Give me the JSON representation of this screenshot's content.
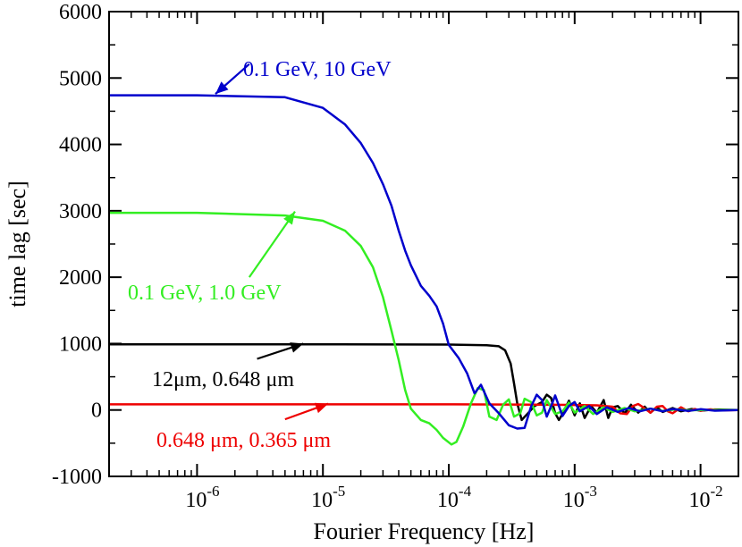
{
  "chart_data": {
    "type": "line",
    "xlabel": "Fourier Frequency [Hz]",
    "ylabel": "time lag [sec]",
    "xscale": "log",
    "xlim": [
      2e-07,
      0.02
    ],
    "ylim": [
      -1000,
      6000
    ],
    "grid": false,
    "y_ticks": [
      "6000",
      "5000",
      "4000",
      "3000",
      "2000",
      "1000",
      "0",
      "-1000"
    ],
    "y_tick_values": [
      6000,
      5000,
      4000,
      3000,
      2000,
      1000,
      0,
      -1000
    ],
    "x_tick_labels": [
      {
        "base": "10",
        "exp": "-6",
        "value": 1e-06
      },
      {
        "base": "10",
        "exp": "-5",
        "value": 1e-05
      },
      {
        "base": "10",
        "exp": "-4",
        "value": 0.0001
      },
      {
        "base": "10",
        "exp": "-3",
        "value": 0.001
      },
      {
        "base": "10",
        "exp": "-2",
        "value": 0.01
      }
    ],
    "series": [
      {
        "name": "0.1 GeV, 10 GeV",
        "color": "#0000cc",
        "points": [
          [
            2e-07,
            4740
          ],
          [
            1e-06,
            4740
          ],
          [
            5e-06,
            4710
          ],
          [
            1e-05,
            4550
          ],
          [
            1.5e-05,
            4300
          ],
          [
            2e-05,
            4020
          ],
          [
            2.5e-05,
            3720
          ],
          [
            3e-05,
            3400
          ],
          [
            3.5e-05,
            3080
          ],
          [
            4e-05,
            2700
          ],
          [
            4.5e-05,
            2400
          ],
          [
            5e-05,
            2180
          ],
          [
            6e-05,
            1870
          ],
          [
            7e-05,
            1720
          ],
          [
            8e-05,
            1560
          ],
          [
            9e-05,
            1300
          ],
          [
            0.0001,
            980
          ],
          [
            0.00012,
            780
          ],
          [
            0.00014,
            550
          ],
          [
            0.00016,
            250
          ],
          [
            0.00018,
            380
          ],
          [
            0.00021,
            100
          ],
          [
            0.00025,
            -50
          ],
          [
            0.0003,
            -230
          ],
          [
            0.00035,
            -280
          ],
          [
            0.0004,
            -270
          ],
          [
            0.00045,
            50
          ],
          [
            0.0005,
            230
          ],
          [
            0.00055,
            150
          ],
          [
            0.0006,
            -100
          ],
          [
            0.00065,
            60
          ],
          [
            0.0007,
            220
          ],
          [
            0.0008,
            -90
          ],
          [
            0.0009,
            60
          ],
          [
            0.001,
            120
          ],
          [
            0.0011,
            -20
          ],
          [
            0.0013,
            60
          ],
          [
            0.0015,
            -60
          ],
          [
            0.0018,
            40
          ],
          [
            0.0022,
            -30
          ],
          [
            0.0027,
            30
          ],
          [
            0.0033,
            -20
          ],
          [
            0.004,
            20
          ],
          [
            0.005,
            -20
          ],
          [
            0.006,
            15
          ],
          [
            0.008,
            -15
          ],
          [
            0.01,
            12
          ],
          [
            0.013,
            -10
          ],
          [
            0.02,
            0
          ]
        ]
      },
      {
        "name": "0.1 GeV, 1.0 GeV",
        "color": "#33ee22",
        "points": [
          [
            2e-07,
            2970
          ],
          [
            1e-06,
            2970
          ],
          [
            5e-06,
            2930
          ],
          [
            1e-05,
            2850
          ],
          [
            1.5e-05,
            2700
          ],
          [
            2e-05,
            2470
          ],
          [
            2.5e-05,
            2150
          ],
          [
            3e-05,
            1700
          ],
          [
            3.5e-05,
            1200
          ],
          [
            4e-05,
            750
          ],
          [
            4.5e-05,
            300
          ],
          [
            5e-05,
            20
          ],
          [
            6e-05,
            -150
          ],
          [
            7e-05,
            -200
          ],
          [
            8e-05,
            -300
          ],
          [
            9e-05,
            -420
          ],
          [
            0.000105,
            -520
          ],
          [
            0.000115,
            -480
          ],
          [
            0.00013,
            -250
          ],
          [
            0.00015,
            100
          ],
          [
            0.00017,
            330
          ],
          [
            0.00019,
            300
          ],
          [
            0.00021,
            -100
          ],
          [
            0.00024,
            -150
          ],
          [
            0.00027,
            80
          ],
          [
            0.0003,
            160
          ],
          [
            0.00033,
            -100
          ],
          [
            0.00037,
            -50
          ],
          [
            0.0004,
            170
          ],
          [
            0.00045,
            120
          ],
          [
            0.0005,
            -80
          ],
          [
            0.00055,
            -40
          ],
          [
            0.0006,
            150
          ],
          [
            0.0007,
            -60
          ],
          [
            0.0008,
            -20
          ],
          [
            0.0009,
            110
          ],
          [
            0.001,
            -40
          ],
          [
            0.0012,
            60
          ],
          [
            0.0014,
            -60
          ],
          [
            0.0017,
            40
          ],
          [
            0.002,
            -30
          ],
          [
            0.0025,
            30
          ],
          [
            0.003,
            -20
          ],
          [
            0.004,
            20
          ],
          [
            0.005,
            -15
          ],
          [
            0.0065,
            10
          ],
          [
            0.008,
            -5
          ],
          [
            0.01,
            0
          ],
          [
            0.02,
            0
          ]
        ]
      },
      {
        "name": "12μm, 0.648 μm",
        "color": "#000000",
        "points": [
          [
            2e-07,
            990
          ],
          [
            1e-05,
            990
          ],
          [
            0.0001,
            985
          ],
          [
            0.0002,
            975
          ],
          [
            0.00025,
            960
          ],
          [
            0.00028,
            900
          ],
          [
            0.00031,
            700
          ],
          [
            0.00033,
            400
          ],
          [
            0.00035,
            100
          ],
          [
            0.00038,
            -150
          ],
          [
            0.00042,
            -60
          ],
          [
            0.00048,
            60
          ],
          [
            0.00055,
            120
          ],
          [
            0.0006,
            230
          ],
          [
            0.00065,
            180
          ],
          [
            0.0007,
            -50
          ],
          [
            0.00075,
            -150
          ],
          [
            0.0008,
            -60
          ],
          [
            0.0009,
            140
          ],
          [
            0.001,
            -80
          ],
          [
            0.0011,
            100
          ],
          [
            0.0012,
            -120
          ],
          [
            0.00135,
            60
          ],
          [
            0.0015,
            -40
          ],
          [
            0.0017,
            150
          ],
          [
            0.00185,
            -120
          ],
          [
            0.002,
            40
          ],
          [
            0.0022,
            60
          ],
          [
            0.0025,
            -50
          ],
          [
            0.0028,
            80
          ],
          [
            0.0032,
            -40
          ],
          [
            0.0036,
            50
          ],
          [
            0.004,
            -40
          ],
          [
            0.0045,
            40
          ],
          [
            0.005,
            -30
          ],
          [
            0.006,
            30
          ],
          [
            0.007,
            -20
          ],
          [
            0.0085,
            15
          ],
          [
            0.01,
            -10
          ],
          [
            0.013,
            8
          ],
          [
            0.02,
            0
          ]
        ]
      },
      {
        "name": "0.648 μm, 0.365 μm",
        "color": "#ee0000",
        "points": [
          [
            2e-07,
            85
          ],
          [
            0.0001,
            85
          ],
          [
            0.0005,
            80
          ],
          [
            0.001,
            75
          ],
          [
            0.0015,
            70
          ],
          [
            0.002,
            50
          ],
          [
            0.0023,
            -50
          ],
          [
            0.0026,
            -60
          ],
          [
            0.0029,
            60
          ],
          [
            0.0032,
            90
          ],
          [
            0.0035,
            40
          ],
          [
            0.004,
            -40
          ],
          [
            0.0045,
            50
          ],
          [
            0.005,
            60
          ],
          [
            0.0055,
            -20
          ],
          [
            0.006,
            -50
          ],
          [
            0.007,
            40
          ],
          [
            0.008,
            -20
          ],
          [
            0.009,
            15
          ],
          [
            0.01,
            -10
          ],
          [
            0.012,
            10
          ],
          [
            0.015,
            -5
          ],
          [
            0.02,
            0
          ]
        ]
      }
    ],
    "annotations": [
      {
        "id": "blue",
        "text": "0.1 GeV, 10 GeV",
        "color": "#0000cc",
        "arrow_from": [
          2.6e-06,
          5210
        ],
        "arrow_to": [
          1.4e-06,
          4760
        ]
      },
      {
        "id": "green",
        "text": "0.1 GeV, 1.0 GeV",
        "color": "#33ee22",
        "arrow_from": [
          2.6e-06,
          2000
        ],
        "arrow_to": [
          6e-06,
          2990
        ]
      },
      {
        "id": "black",
        "text": "12μm, 0.648 μm",
        "color": "#000000",
        "arrow_from": [
          3e-06,
          770
        ],
        "arrow_to": [
          7e-06,
          1000
        ]
      },
      {
        "id": "red",
        "text": "0.648 μm, 0.365 μm",
        "color": "#ee0000",
        "arrow_from": [
          5e-06,
          -140
        ],
        "arrow_to": [
          1.1e-05,
          95
        ]
      }
    ]
  }
}
